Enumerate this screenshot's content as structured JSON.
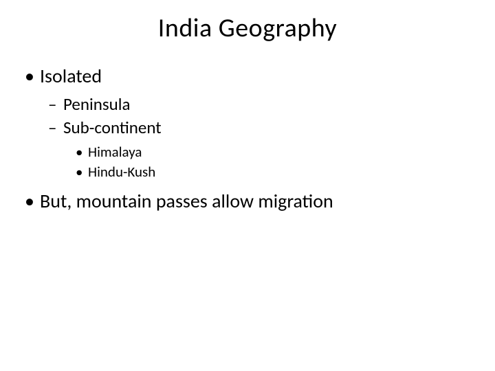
{
  "title": "India Geography",
  "bullets": {
    "l1_0": "Isolated",
    "l2_0": "Peninsula",
    "l2_1": "Sub-continent",
    "l3_0": "Himalaya",
    "l3_1": "Hindu-Kush",
    "l1_1": "But, mountain passes allow migration"
  },
  "markers": {
    "dot": "•",
    "dash": "–"
  },
  "style": {
    "background_color": "#ffffff",
    "text_color": "#000000",
    "title_fontsize": 38,
    "l1_fontsize": 28,
    "l2_fontsize": 25,
    "l3_fontsize": 21
  }
}
